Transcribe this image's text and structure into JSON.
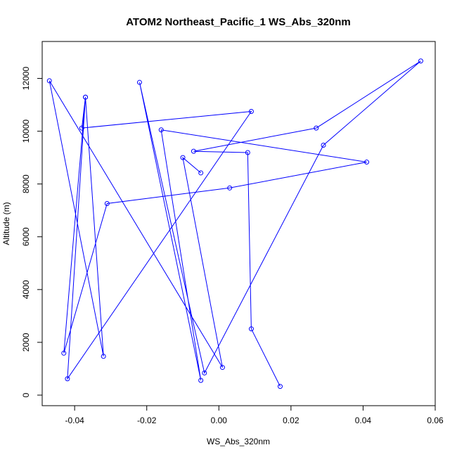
{
  "chart_data": {
    "type": "line",
    "title": "ATOM2 Northeast_Pacific_1 WS_Abs_320nm",
    "xlabel": "WS_Abs_320nm",
    "ylabel": "Altitude (m)",
    "xlim": [
      -0.049,
      0.06
    ],
    "ylim": [
      -400,
      13400
    ],
    "xticks": [
      -0.04,
      -0.02,
      0.0,
      0.02,
      0.04,
      0.06
    ],
    "xtick_labels": [
      "-0.04",
      "-0.02",
      "0.00",
      "0.02",
      "0.04",
      "0.06"
    ],
    "yticks": [
      0,
      2000,
      4000,
      6000,
      8000,
      10000,
      12000
    ],
    "ytick_labels": [
      "0",
      "2000",
      "4000",
      "6000",
      "8000",
      "10000",
      "12000"
    ],
    "grid": false,
    "series": [
      {
        "color": "#0000ff",
        "marker": "open-circle",
        "x": [
          0.017,
          0.009,
          0.008,
          -0.007,
          0.027,
          0.056,
          0.029,
          -0.004,
          -0.022,
          -0.005,
          -0.016,
          0.041,
          0.003,
          -0.031,
          -0.043,
          -0.037,
          -0.038,
          0.009,
          -0.042,
          -0.037,
          -0.032,
          -0.047,
          0.001,
          -0.01,
          -0.005
        ],
        "y": [
          330,
          2510,
          9190,
          9240,
          10120,
          12660,
          9470,
          840,
          11850,
          560,
          10050,
          8830,
          7850,
          7260,
          1590,
          11290,
          10120,
          10750,
          620,
          11290,
          1470,
          11910,
          1050,
          9000,
          8420
        ]
      }
    ]
  }
}
